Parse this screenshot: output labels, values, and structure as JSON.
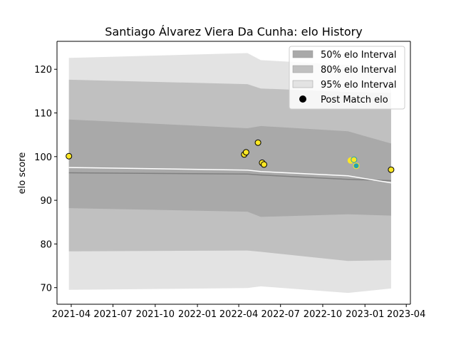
{
  "chart_data": {
    "type": "line",
    "title": "Santiago Álvarez Viera Da Cunha: elo History",
    "xlabel": "",
    "ylabel": "elo score",
    "xlim": [
      "2021-03-01",
      "2023-04-10"
    ],
    "ylim": [
      66.2,
      126.4
    ],
    "x_ticks": [
      "2021-04",
      "2021-07",
      "2021-10",
      "2022-01",
      "2022-04",
      "2022-07",
      "2022-10",
      "2023-01",
      "2023-04"
    ],
    "y_ticks": [
      70,
      80,
      90,
      100,
      110,
      120
    ],
    "grid": false,
    "legend_position": "top-right",
    "legend": [
      {
        "label": "50% elo Interval",
        "kind": "band",
        "color": "#a9a9a9"
      },
      {
        "label": "80% elo Interval",
        "kind": "band",
        "color": "#c0c0c0"
      },
      {
        "label": "95% elo Interval",
        "kind": "band",
        "color": "#e3e3e3"
      },
      {
        "label": "Post Match elo",
        "kind": "marker",
        "color": "#000000"
      }
    ],
    "band_dates": [
      "2021-03-27",
      "2022-04-20",
      "2022-05-19",
      "2022-11-25",
      "2023-02-27"
    ],
    "bands": [
      {
        "name": "95% elo Interval",
        "color": "#e3e3e3",
        "lower": [
          69.5,
          69.9,
          70.3,
          68.8,
          69.8
        ],
        "upper": [
          122.6,
          123.7,
          122.1,
          121.0,
          120.0
        ]
      },
      {
        "name": "80% elo Interval",
        "color": "#c0c0c0",
        "lower": [
          78.3,
          78.5,
          78.2,
          76.1,
          76.3
        ],
        "upper": [
          117.6,
          116.6,
          115.6,
          114.8,
          114.6
        ]
      },
      {
        "name": "50% elo Interval",
        "color": "#a9a9a9",
        "lower": [
          88.2,
          87.4,
          86.2,
          86.8,
          86.5
        ],
        "upper": [
          108.5,
          106.5,
          107.0,
          105.8,
          103.0
        ]
      }
    ],
    "median_line": {
      "color": "#808080",
      "x": [
        "2021-03-27",
        "2022-04-20",
        "2022-05-19",
        "2022-11-25",
        "2023-02-27"
      ],
      "y": [
        96.3,
        96.0,
        95.8,
        94.8,
        94.5
      ]
    },
    "mean_line": {
      "color": "#ffffff",
      "x": [
        "2021-03-27",
        "2022-04-20",
        "2022-05-19",
        "2022-11-25",
        "2023-02-27"
      ],
      "y": [
        97.5,
        96.9,
        96.6,
        95.6,
        94.0
      ]
    },
    "series": [
      {
        "name": "Post Match elo",
        "x": [
          "2021-03-27",
          "2022-04-13",
          "2022-04-17",
          "2022-05-13",
          "2022-05-22",
          "2022-05-26",
          "2022-12-01",
          "2022-12-08",
          "2022-12-13",
          "2023-02-27"
        ],
        "y": [
          100.1,
          100.5,
          101.0,
          103.2,
          98.6,
          98.2,
          99.1,
          99.3,
          97.9,
          97.0
        ],
        "colors": [
          "#fde725",
          "#fde725",
          "#fde725",
          "#fde725",
          "#fde725",
          "#fde725",
          "#fde725",
          "#fde725",
          "#21a2b1",
          "#fde725"
        ],
        "edge_colors": [
          "#000000",
          "#000000",
          "#000000",
          "#000000",
          "#000000",
          "#000000",
          "#fde725",
          "#21a2b1",
          "#fde725",
          "#000000"
        ]
      }
    ]
  }
}
